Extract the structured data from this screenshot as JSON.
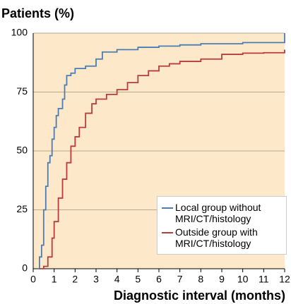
{
  "chart_data": {
    "type": "line",
    "ylabel": "Patients (%)",
    "xlabel": "Diagnostic interval (months)",
    "xlim": [
      0,
      12
    ],
    "ylim": [
      0,
      100
    ],
    "xticks": [
      0,
      1,
      2,
      3,
      4,
      5,
      6,
      7,
      8,
      9,
      10,
      11,
      12
    ],
    "yticks": [
      0,
      25,
      50,
      75,
      100
    ],
    "grid": true,
    "legend": "lower right",
    "background": "#fde9c9",
    "series": [
      {
        "name": "Local group without MRI/CT/histology",
        "color": "#4a7db4",
        "x": [
          0.2,
          0.3,
          0.4,
          0.5,
          0.6,
          0.7,
          0.8,
          0.9,
          1.0,
          1.1,
          1.2,
          1.4,
          1.5,
          1.6,
          1.8,
          2.0,
          2.5,
          3.0,
          3.3,
          4,
          5,
          6,
          7,
          8,
          10,
          12,
          12
        ],
        "values": [
          0,
          5,
          10,
          25,
          35,
          45,
          48,
          55,
          60,
          65,
          68,
          72,
          78,
          82,
          83,
          85,
          86,
          89,
          92,
          93,
          94,
          94.5,
          95,
          95.5,
          96,
          96.5,
          100
        ]
      },
      {
        "name": "Outside group with MRI/CT/histology",
        "color": "#b83c3c",
        "x": [
          0.3,
          0.5,
          0.7,
          0.9,
          1.0,
          1.2,
          1.4,
          1.6,
          1.8,
          2.0,
          2.2,
          2.5,
          2.8,
          3.0,
          3.5,
          4,
          4.5,
          5,
          5.5,
          6,
          6.5,
          7,
          8,
          9,
          10,
          11,
          12,
          12
        ],
        "values": [
          0,
          1,
          5,
          13,
          20,
          30,
          38,
          45,
          52,
          56,
          60,
          66,
          70,
          72,
          74,
          76,
          79,
          82,
          84,
          86,
          87,
          88,
          89,
          91,
          91.5,
          91.7,
          92,
          93
        ]
      }
    ]
  }
}
